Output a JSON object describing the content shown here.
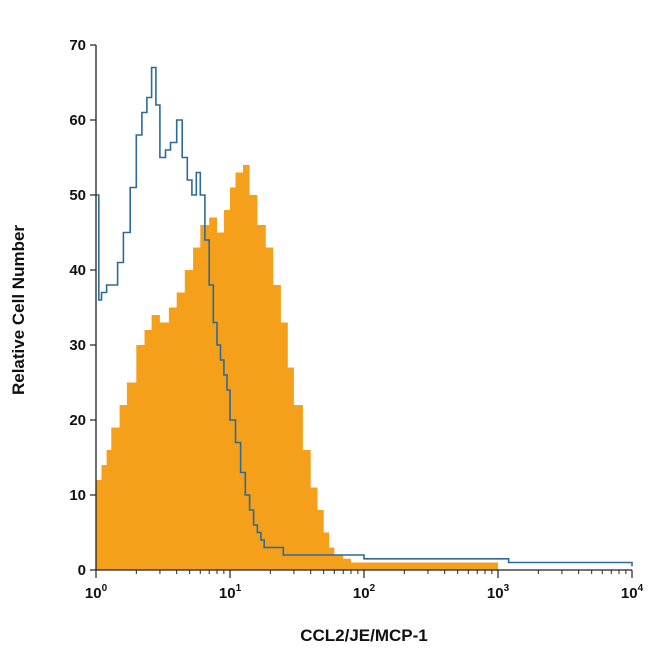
{
  "chart_data": {
    "type": "area",
    "title": "",
    "xlabel": "CCL2/JE/MCP-1",
    "ylabel": "Relative Cell Number",
    "x_scale": "log",
    "xlim": [
      1,
      10000
    ],
    "ylim": [
      0,
      70
    ],
    "x_ticks": [
      {
        "value": 1,
        "base": "10",
        "exp": "0"
      },
      {
        "value": 10,
        "base": "10",
        "exp": "1"
      },
      {
        "value": 100,
        "base": "10",
        "exp": "2"
      },
      {
        "value": 1000,
        "base": "10",
        "exp": "3"
      },
      {
        "value": 10000,
        "base": "10",
        "exp": "4"
      }
    ],
    "y_ticks": [
      "0",
      "10",
      "20",
      "30",
      "40",
      "50",
      "60",
      "70"
    ],
    "grid": false,
    "legend": "none",
    "series": [
      {
        "kind": "filled",
        "color": "#f5a01a",
        "x": [
          1.0,
          1.1,
          1.2,
          1.3,
          1.5,
          1.7,
          2.0,
          2.3,
          2.6,
          3.0,
          3.5,
          4.0,
          4.6,
          5.3,
          6.0,
          7.0,
          8.0,
          9.0,
          10.0,
          11.0,
          12.5,
          14.0,
          16.0,
          18.5,
          21.0,
          24.0,
          27.0,
          30.0,
          35.0,
          40.0,
          45.0,
          50.0,
          55.0,
          60.0,
          70.0,
          80.0,
          100.0,
          150.0,
          200.0,
          300.0,
          500.0,
          700.0,
          800.0,
          1000.0
        ],
        "y": [
          12,
          14,
          16,
          19,
          22,
          25,
          30,
          32,
          34,
          33,
          35,
          37,
          40,
          43,
          46,
          47,
          45,
          48,
          51,
          53,
          54,
          50,
          46,
          43,
          38,
          33,
          27,
          22,
          16,
          11,
          8,
          5,
          3,
          2,
          1.5,
          1,
          1,
          1,
          1,
          1,
          1,
          1,
          1,
          0
        ]
      },
      {
        "kind": "outline",
        "color": "#2d6a99",
        "x": [
          1.0,
          1.05,
          1.1,
          1.2,
          1.3,
          1.45,
          1.6,
          1.8,
          2.0,
          2.2,
          2.4,
          2.6,
          2.8,
          3.0,
          3.3,
          3.6,
          4.0,
          4.4,
          4.8,
          5.2,
          5.6,
          6.0,
          6.5,
          7.0,
          7.5,
          8.0,
          8.5,
          9.0,
          9.5,
          10.0,
          11.0,
          12.0,
          13.0,
          14.0,
          15.0,
          16.0,
          17.0,
          18.0,
          20.0,
          25.0,
          30.0,
          40.0,
          50.0,
          100.0,
          200.0,
          300.0,
          500.0,
          700.0,
          1000.0,
          1200.0,
          1500.0,
          2000.0,
          3000.0,
          5000.0,
          10000.0
        ],
        "y": [
          50,
          36,
          37,
          38,
          38,
          41,
          45,
          51,
          58,
          61,
          63,
          67,
          62,
          55,
          56,
          57,
          60,
          55,
          52,
          50,
          53,
          50,
          44,
          38,
          33,
          30,
          28,
          26,
          24,
          20,
          17,
          13,
          10,
          8,
          6,
          5,
          4,
          3,
          3,
          2,
          2,
          2,
          2,
          1.5,
          1.5,
          1.5,
          1.5,
          1.5,
          1.5,
          1,
          1,
          1,
          1,
          1,
          0.5
        ]
      }
    ]
  }
}
